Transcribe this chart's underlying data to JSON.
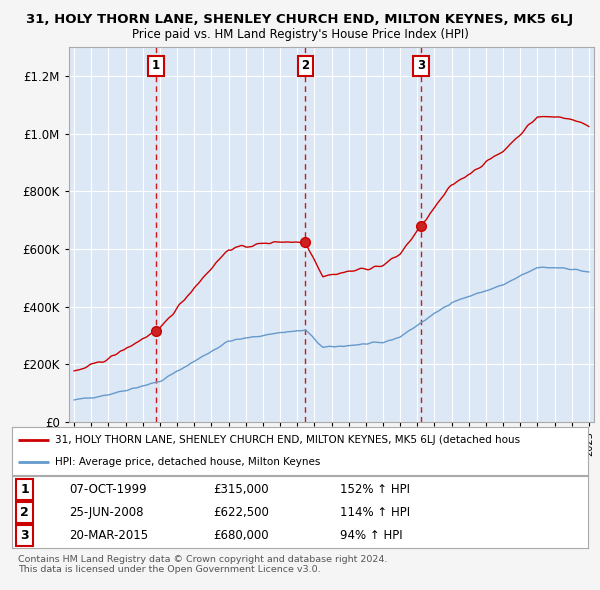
{
  "title": "31, HOLY THORN LANE, SHENLEY CHURCH END, MILTON KEYNES, MK5 6LJ",
  "subtitle": "Price paid vs. HM Land Registry's House Price Index (HPI)",
  "background_color": "#f0f4fa",
  "plot_bg_color": "#dce8f5",
  "grid_color": "#ffffff",
  "sale_prices": [
    315000,
    622500,
    680000
  ],
  "sale_labels": [
    "1",
    "2",
    "3"
  ],
  "sale_year_floats": [
    1999.77,
    2008.48,
    2015.22
  ],
  "sale_info": [
    {
      "label": "1",
      "date": "07-OCT-1999",
      "price": "£315,000",
      "hpi": "152% ↑ HPI"
    },
    {
      "label": "2",
      "date": "25-JUN-2008",
      "price": "£622,500",
      "hpi": "114% ↑ HPI"
    },
    {
      "label": "3",
      "date": "20-MAR-2015",
      "price": "£680,000",
      "hpi": "94% ↑ HPI"
    }
  ],
  "legend_line1": "31, HOLY THORN LANE, SHENLEY CHURCH END, MILTON KEYNES, MK5 6LJ (detached hous",
  "legend_line2": "HPI: Average price, detached house, Milton Keynes",
  "footer1": "Contains HM Land Registry data © Crown copyright and database right 2024.",
  "footer2": "This data is licensed under the Open Government Licence v3.0.",
  "red_line_color": "#cc0000",
  "blue_line_color": "#6699cc",
  "dashed_color": "#cc0000",
  "yticks": [
    0,
    200000,
    400000,
    600000,
    800000,
    1000000,
    1200000
  ],
  "ylim_max": 1300000
}
